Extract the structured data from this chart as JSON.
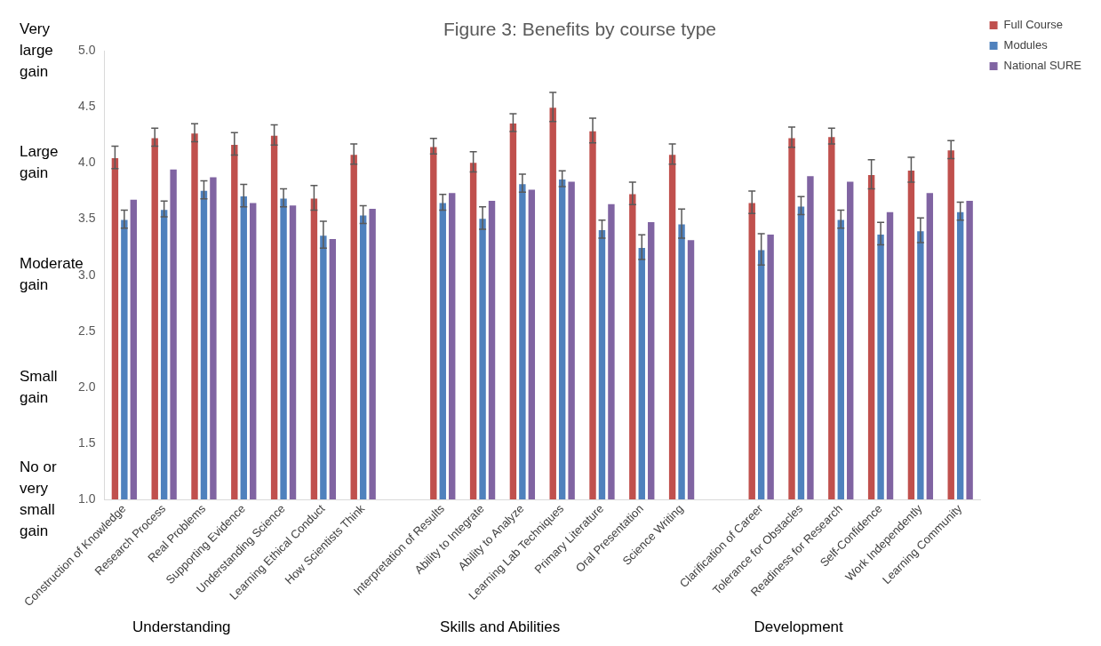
{
  "chart_data": {
    "type": "bar",
    "title": "Figure 3: Benefits by course type",
    "categories": [
      "Construction of Knowledge",
      "Research Process",
      "Real Problems",
      "Supporting Evidence",
      "Understanding Science",
      "Learning Ethical Conduct",
      "How Scientists Think",
      null,
      "Interpretation of Results",
      "Ability to Integrate",
      "Ability to Analyze",
      "Learning Lab Techniques",
      "Primary Literature",
      "Oral Presentation",
      "Science Writing",
      null,
      "Clarification of Career",
      "Tolerance for Obstacles",
      "Readiness for Research",
      "Self-Confidence",
      "Work Independently",
      "Learning Community"
    ],
    "series": [
      {
        "name": "Full Course",
        "color": "#c0504d",
        "values": [
          4.05,
          4.23,
          4.27,
          4.17,
          4.25,
          3.69,
          4.08,
          null,
          4.15,
          4.01,
          4.36,
          4.5,
          4.29,
          3.73,
          4.08,
          null,
          3.65,
          4.23,
          4.24,
          3.9,
          3.94,
          4.12
        ],
        "errors": [
          0.1,
          0.08,
          0.08,
          0.1,
          0.09,
          0.11,
          0.09,
          null,
          0.07,
          0.09,
          0.08,
          0.13,
          0.11,
          0.1,
          0.09,
          null,
          0.1,
          0.09,
          0.07,
          0.13,
          0.11,
          0.08
        ]
      },
      {
        "name": "Modules",
        "color": "#4f81bd",
        "values": [
          3.5,
          3.59,
          3.76,
          3.71,
          3.69,
          3.36,
          3.54,
          null,
          3.65,
          3.51,
          3.82,
          3.86,
          3.41,
          3.25,
          3.46,
          null,
          3.23,
          3.62,
          3.5,
          3.37,
          3.4,
          3.57
        ],
        "errors": [
          0.08,
          0.07,
          0.08,
          0.1,
          0.08,
          0.12,
          0.08,
          null,
          0.07,
          0.1,
          0.08,
          0.07,
          0.08,
          0.11,
          0.13,
          null,
          0.14,
          0.08,
          0.08,
          0.1,
          0.11,
          0.08
        ]
      },
      {
        "name": "National SURE",
        "color": "#8064a2",
        "values": [
          3.68,
          3.95,
          3.88,
          3.65,
          3.63,
          3.33,
          3.6,
          null,
          3.74,
          3.67,
          3.77,
          3.84,
          3.64,
          3.48,
          3.32,
          null,
          3.37,
          3.89,
          3.84,
          3.57,
          3.74,
          3.67
        ]
      }
    ],
    "ylim": [
      1,
      5
    ],
    "yticks": [
      {
        "value": 1,
        "label": "1.0"
      },
      {
        "value": 1.5,
        "label": "1.5"
      },
      {
        "value": 2,
        "label": "2.0"
      },
      {
        "value": 2.5,
        "label": "2.5"
      },
      {
        "value": 3,
        "label": "3.0"
      },
      {
        "value": 3.5,
        "label": "3.5"
      },
      {
        "value": 4,
        "label": "4.0"
      },
      {
        "value": 4.5,
        "label": "4.5"
      },
      {
        "value": 5,
        "label": "5.0"
      }
    ],
    "grid": false,
    "legend": "top right",
    "annotations": [
      "Very large gain",
      "Large gain",
      "Moderate gain",
      "Small gain",
      "No or very small gain",
      "Understanding",
      "Skills and Abilities",
      "Development"
    ]
  }
}
